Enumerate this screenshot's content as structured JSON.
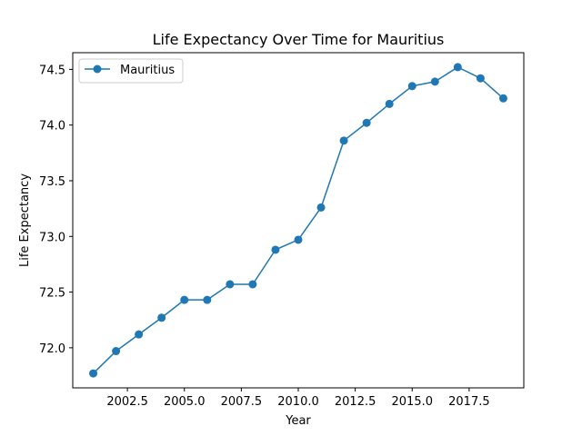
{
  "chart_data": {
    "type": "line",
    "title": "Life Expectancy Over Time for Mauritius",
    "xlabel": "Year",
    "ylabel": "Life Expectancy",
    "xlim": [
      2000.1,
      2019.9
    ],
    "ylim": [
      71.64,
      74.65
    ],
    "xticks": [
      2002.5,
      2005.0,
      2007.5,
      2010.0,
      2012.5,
      2015.0,
      2017.5
    ],
    "xtick_labels": [
      "2002.5",
      "2005.0",
      "2007.5",
      "2010.0",
      "2012.5",
      "2015.0",
      "2017.5"
    ],
    "yticks": [
      72.0,
      72.5,
      73.0,
      73.5,
      74.0,
      74.5
    ],
    "ytick_labels": [
      "72.0",
      "72.5",
      "73.0",
      "73.5",
      "74.0",
      "74.5"
    ],
    "grid": false,
    "legend_position": "top-left",
    "series": [
      {
        "name": "Mauritius",
        "color": "#1f77b4",
        "marker": "circle",
        "x": [
          2001,
          2002,
          2003,
          2004,
          2005,
          2006,
          2007,
          2008,
          2009,
          2010,
          2011,
          2012,
          2013,
          2014,
          2015,
          2016,
          2017,
          2018,
          2019
        ],
        "y": [
          71.77,
          71.97,
          72.12,
          72.27,
          72.43,
          72.43,
          72.57,
          72.57,
          72.88,
          72.97,
          73.26,
          73.86,
          74.02,
          74.19,
          74.35,
          74.39,
          74.52,
          74.42,
          74.24
        ]
      }
    ]
  }
}
